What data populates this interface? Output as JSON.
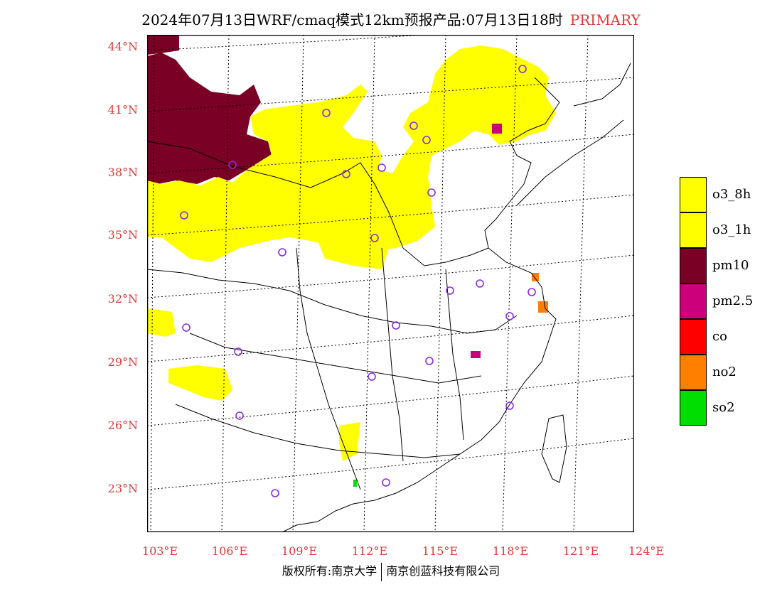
{
  "title": {
    "text": "2024年07月13日WRF/cmaq模式12km预报产品:07月13日18时",
    "tag": "PRIMARY"
  },
  "colors": {
    "label": "#e03a3a",
    "o3_8h": "#ffff00",
    "o3_1h": "#ffff00",
    "pm10": "#7a0026",
    "pm25": "#cc007a",
    "co": "#ff0000",
    "no2": "#ff7f00",
    "so2": "#00dd00",
    "station": "#8a2be2"
  },
  "lat_labels": [
    "44°N",
    "41°N",
    "38°N",
    "35°N",
    "32°N",
    "29°N",
    "26°N",
    "23°N"
  ],
  "lon_labels": [
    "103°E",
    "106°E",
    "109°E",
    "112°E",
    "115°E",
    "118°E",
    "121°E",
    "124°E"
  ],
  "legend": [
    {
      "label": "o3_8h",
      "color": "#ffff00"
    },
    {
      "label": "o3_1h",
      "color": "#ffff00"
    },
    {
      "label": "pm10",
      "color": "#7a0026"
    },
    {
      "label": "pm2.5",
      "color": "#cc007a"
    },
    {
      "label": "co",
      "color": "#ff0000"
    },
    {
      "label": "no2",
      "color": "#ff7f00"
    },
    {
      "label": "so2",
      "color": "#00dd00"
    }
  ],
  "footer": {
    "left": "版权所有:南京大学",
    "right": "南京创蓝科技有限公司"
  }
}
